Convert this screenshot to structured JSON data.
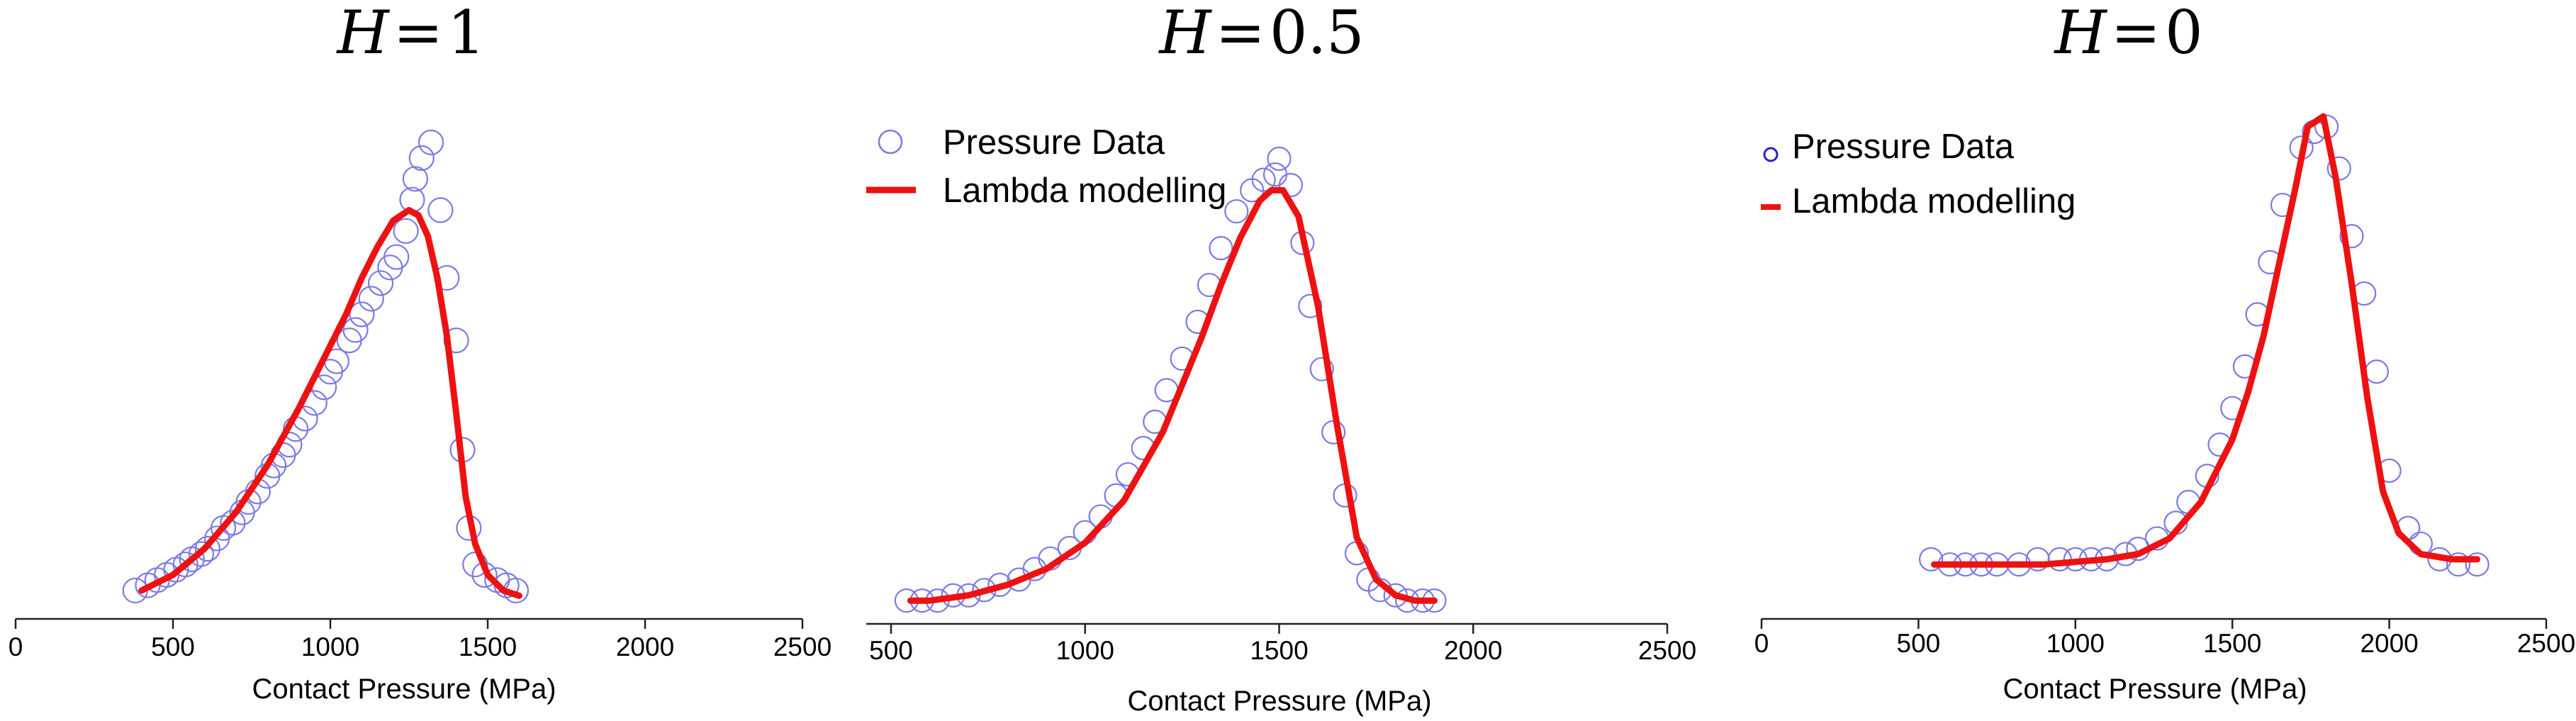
{
  "colors": {
    "marker": "#7a7ae6",
    "line": "#ee1111",
    "axis": "#222222"
  },
  "chart_data": [
    {
      "type": "line",
      "title": {
        "variable": "H",
        "equals": "=",
        "value": "1"
      },
      "xlabel": "Contact Pressure (MPa)",
      "ylabel": "",
      "xlim": [
        0,
        2500
      ],
      "ylim": [
        0,
        1
      ],
      "xticks": [
        0,
        500,
        1000,
        1500,
        2000,
        2500
      ],
      "xtick_labels": [
        "0",
        "500",
        "1000",
        "1500",
        "2000",
        "2500"
      ],
      "legend": null,
      "series": [
        {
          "name": "Pressure Data",
          "kind": "scatter",
          "x": [
            380,
            420,
            450,
            480,
            510,
            540,
            560,
            590,
            610,
            640,
            660,
            690,
            720,
            740,
            770,
            800,
            820,
            850,
            870,
            890,
            920,
            950,
            980,
            1000,
            1020,
            1060,
            1080,
            1100,
            1130,
            1160,
            1190,
            1210,
            1240,
            1260,
            1270,
            1290,
            1320,
            1350,
            1370,
            1400,
            1420,
            1440,
            1460,
            1490,
            1530,
            1560,
            1590
          ],
          "y": [
            0.03,
            0.04,
            0.05,
            0.06,
            0.07,
            0.08,
            0.09,
            0.1,
            0.11,
            0.13,
            0.15,
            0.16,
            0.18,
            0.2,
            0.22,
            0.25,
            0.27,
            0.29,
            0.31,
            0.34,
            0.36,
            0.39,
            0.42,
            0.45,
            0.47,
            0.51,
            0.53,
            0.56,
            0.59,
            0.62,
            0.65,
            0.67,
            0.72,
            0.78,
            0.82,
            0.86,
            0.89,
            0.76,
            0.63,
            0.51,
            0.3,
            0.15,
            0.08,
            0.06,
            0.05,
            0.04,
            0.03
          ]
        },
        {
          "name": "Lambda modelling",
          "kind": "line",
          "x": [
            400,
            500,
            600,
            700,
            800,
            900,
            1000,
            1050,
            1100,
            1150,
            1200,
            1250,
            1280,
            1310,
            1340,
            1370,
            1400,
            1430,
            1460,
            1500,
            1550,
            1600
          ],
          "y": [
            0.03,
            0.06,
            0.11,
            0.18,
            0.27,
            0.38,
            0.5,
            0.56,
            0.63,
            0.69,
            0.74,
            0.76,
            0.75,
            0.71,
            0.63,
            0.52,
            0.37,
            0.21,
            0.12,
            0.06,
            0.03,
            0.02
          ]
        }
      ]
    },
    {
      "type": "line",
      "title": {
        "variable": "H",
        "equals": "=",
        "value": "0.5"
      },
      "xlabel": "Contact Pressure (MPa)",
      "ylabel": "",
      "xlim": [
        500,
        2500
      ],
      "ylim": [
        0,
        1
      ],
      "xticks": [
        500,
        1000,
        1500,
        2000,
        2500
      ],
      "xtick_labels": [
        "500",
        "1000",
        "1500",
        "2000",
        "2500"
      ],
      "legend": {
        "position": "top-left",
        "entries": [
          "Pressure Data",
          "Lambda modelling"
        ]
      },
      "series": [
        {
          "name": "Pressure Data",
          "kind": "scatter",
          "x": [
            540,
            580,
            620,
            660,
            700,
            740,
            780,
            830,
            870,
            910,
            960,
            1000,
            1040,
            1080,
            1110,
            1150,
            1180,
            1210,
            1250,
            1290,
            1320,
            1350,
            1390,
            1430,
            1460,
            1490,
            1500,
            1530,
            1560,
            1580,
            1610,
            1640,
            1670,
            1700,
            1730,
            1760,
            1800,
            1830,
            1870,
            1900
          ],
          "y": [
            0.02,
            0.02,
            0.02,
            0.03,
            0.03,
            0.04,
            0.05,
            0.06,
            0.08,
            0.1,
            0.12,
            0.15,
            0.18,
            0.22,
            0.26,
            0.31,
            0.36,
            0.42,
            0.48,
            0.55,
            0.62,
            0.69,
            0.76,
            0.8,
            0.82,
            0.83,
            0.86,
            0.81,
            0.7,
            0.58,
            0.46,
            0.34,
            0.22,
            0.11,
            0.06,
            0.04,
            0.03,
            0.02,
            0.02,
            0.02
          ]
        },
        {
          "name": "Lambda modelling",
          "kind": "line",
          "x": [
            550,
            600,
            700,
            800,
            900,
            1000,
            1100,
            1200,
            1300,
            1350,
            1400,
            1450,
            1480,
            1510,
            1550,
            1600,
            1650,
            1700,
            1750,
            1800,
            1850,
            1900
          ],
          "y": [
            0.02,
            0.02,
            0.03,
            0.05,
            0.08,
            0.13,
            0.21,
            0.34,
            0.52,
            0.62,
            0.71,
            0.78,
            0.8,
            0.8,
            0.75,
            0.58,
            0.35,
            0.14,
            0.06,
            0.03,
            0.02,
            0.02
          ]
        }
      ]
    },
    {
      "type": "line",
      "title": {
        "variable": "H",
        "equals": "=",
        "value": "0"
      },
      "xlabel": "Contact Pressure (MPa)",
      "ylabel": "",
      "xlim": [
        0,
        2500
      ],
      "ylim": [
        0,
        1
      ],
      "xticks": [
        0,
        500,
        1000,
        1500,
        2000,
        2500
      ],
      "xtick_labels": [
        "0",
        "500",
        "1000",
        "1500",
        "2000",
        "2500"
      ],
      "legend": {
        "position": "top-left",
        "entries": [
          "Pressure Data",
          "Lambda modelling"
        ]
      },
      "series": [
        {
          "name": "Pressure Data",
          "kind": "scatter",
          "x": [
            540,
            600,
            650,
            700,
            750,
            820,
            880,
            950,
            1000,
            1050,
            1100,
            1160,
            1200,
            1260,
            1320,
            1360,
            1420,
            1460,
            1500,
            1540,
            1580,
            1620,
            1660,
            1720,
            1760,
            1800,
            1840,
            1880,
            1920,
            1960,
            2000,
            2060,
            2100,
            2160,
            2220,
            2280
          ],
          "y": [
            0.09,
            0.08,
            0.08,
            0.08,
            0.08,
            0.08,
            0.09,
            0.09,
            0.09,
            0.09,
            0.09,
            0.1,
            0.11,
            0.13,
            0.16,
            0.2,
            0.25,
            0.31,
            0.38,
            0.46,
            0.56,
            0.66,
            0.77,
            0.88,
            0.91,
            0.92,
            0.84,
            0.71,
            0.6,
            0.45,
            0.26,
            0.15,
            0.12,
            0.09,
            0.08,
            0.08
          ]
        },
        {
          "name": "Lambda modelling",
          "kind": "line",
          "x": [
            550,
            700,
            900,
            1100,
            1200,
            1300,
            1400,
            1500,
            1550,
            1600,
            1650,
            1700,
            1740,
            1790,
            1830,
            1880,
            1930,
            1980,
            2030,
            2100,
            2200,
            2280
          ],
          "y": [
            0.08,
            0.08,
            0.08,
            0.09,
            0.1,
            0.13,
            0.2,
            0.32,
            0.41,
            0.52,
            0.66,
            0.8,
            0.92,
            0.94,
            0.82,
            0.62,
            0.4,
            0.22,
            0.14,
            0.1,
            0.09,
            0.09
          ]
        }
      ]
    }
  ]
}
